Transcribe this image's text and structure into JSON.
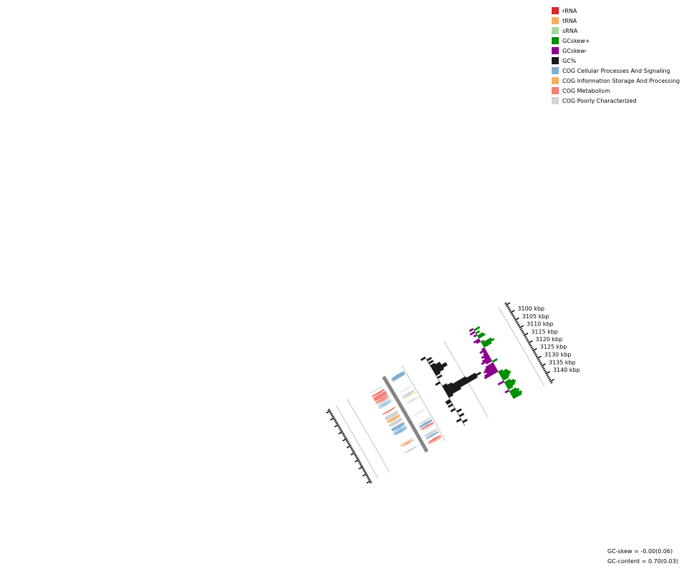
{
  "legend": [
    {
      "label": "rRNA",
      "color": "#d62728"
    },
    {
      "label": "tRNA",
      "color": "#f6ae62"
    },
    {
      "label": "sRNA",
      "color": "#a5d8a0"
    },
    {
      "label": "GCskew+",
      "color": "#008f00"
    },
    {
      "label": "GCskew-",
      "color": "#8b008b"
    },
    {
      "label": "GC%",
      "color": "#1a1a1a"
    },
    {
      "label": "COG Cellular Processes And Signaling",
      "color": "#7fb0d4"
    },
    {
      "label": "COG Information Storage And Processing",
      "color": "#f6ae62"
    },
    {
      "label": "COG Metabolism",
      "color": "#f47f72"
    },
    {
      "label": "COG Poorly Characterized",
      "color": "#d3d3d3"
    }
  ],
  "stats": {
    "gc_skew": "GC-skew = -0.00(0.06)",
    "gc_content": "GC-content = 0.70(0.03)"
  },
  "chart_data": {
    "type": "circular-genome-map-segment",
    "axis_unit": "kbp",
    "visible_range_kbp": [
      3097,
      3143
    ],
    "tick_labels": [
      {
        "kbp": 3100,
        "label": "3100 kbp"
      },
      {
        "kbp": 3105,
        "label": "3105 kbp"
      },
      {
        "kbp": 3110,
        "label": "3110 kbp"
      },
      {
        "kbp": 3115,
        "label": "3115 kbp"
      },
      {
        "kbp": 3120,
        "label": "3120 kbp"
      },
      {
        "kbp": 3125,
        "label": "3125 kbp"
      },
      {
        "kbp": 3130,
        "label": "3130 kbp"
      },
      {
        "kbp": 3135,
        "label": "3135 kbp"
      },
      {
        "kbp": 3140,
        "label": "3140 kbp"
      }
    ],
    "features": [
      {
        "start": 3097.2,
        "end": 3098.0,
        "strand": -1,
        "cog": "COG Poorly Characterized"
      },
      {
        "start": 3098.3,
        "end": 3098.9,
        "strand": 1,
        "cog": "COG Poorly Characterized"
      },
      {
        "start": 3097.0,
        "end": 3099.5,
        "strand": -1,
        "cog": "COG Cellular Processes And Signaling"
      },
      {
        "start": 3100.3,
        "end": 3101.6,
        "strand": 1,
        "cog": "COG Metabolism"
      },
      {
        "start": 3101.8,
        "end": 3104.5,
        "strand": 1,
        "cog": "COG Metabolism"
      },
      {
        "start": 3104.7,
        "end": 3105.9,
        "strand": 1,
        "cog": "COG Metabolism"
      },
      {
        "start": 3106.1,
        "end": 3106.8,
        "strand": 1,
        "cog": "COG Metabolism"
      },
      {
        "start": 3106.9,
        "end": 3107.4,
        "strand": -1,
        "cog": "COG Poorly Characterized"
      },
      {
        "start": 3107.5,
        "end": 3107.9,
        "strand": 1,
        "cog": "COG Cellular Processes And Signaling"
      },
      {
        "start": 3108.1,
        "end": 3108.8,
        "strand": 1,
        "cog": "COG Cellular Processes And Signaling"
      },
      {
        "start": 3109.1,
        "end": 3109.7,
        "strand": 1,
        "cog": "COG Cellular Processes And Signaling"
      },
      {
        "start": 3110.0,
        "end": 3110.6,
        "strand": -1,
        "cog": "COG Cellular Processes And Signaling"
      },
      {
        "start": 3111.2,
        "end": 3111.7,
        "strand": -1,
        "cog": "COG Information Storage And Processing"
      },
      {
        "start": 3113.0,
        "end": 3114.0,
        "strand": 1,
        "cog": "COG Metabolism"
      },
      {
        "start": 3114.3,
        "end": 3114.8,
        "strand": -1,
        "cog": "COG Poorly Characterized"
      },
      {
        "start": 3115.2,
        "end": 3115.5,
        "strand": -1,
        "cog": "COG Information Storage And Processing"
      },
      {
        "start": 3115.5,
        "end": 3118.0,
        "strand": 1,
        "cog": "COG Poorly Characterized"
      },
      {
        "start": 3118.2,
        "end": 3119.8,
        "strand": 1,
        "cog": "COG Information Storage And Processing"
      },
      {
        "start": 3120.3,
        "end": 3122.7,
        "strand": 1,
        "cog": "COG Poorly Characterized"
      },
      {
        "start": 3122.9,
        "end": 3123.4,
        "strand": -1,
        "cog": "COG Poorly Characterized"
      },
      {
        "start": 3123.5,
        "end": 3125.5,
        "strand": 1,
        "cog": "COG Cellular Processes And Signaling"
      },
      {
        "start": 3125.7,
        "end": 3126.3,
        "strand": 1,
        "cog": "COG Cellular Processes And Signaling"
      },
      {
        "start": 3126.6,
        "end": 3128.0,
        "strand": 1,
        "cog": "COG Cellular Processes And Signaling"
      },
      {
        "start": 3128.1,
        "end": 3128.4,
        "strand": 1,
        "cog": "COG Cellular Processes And Signaling"
      },
      {
        "start": 3128.9,
        "end": 3129.8,
        "strand": -1,
        "cog": "COG Poorly Characterized"
      },
      {
        "start": 3130.2,
        "end": 3131.7,
        "strand": -1,
        "cog": "COG Cellular Processes And Signaling"
      },
      {
        "start": 3132.0,
        "end": 3133.2,
        "strand": -1,
        "cog": "COG Metabolism"
      },
      {
        "start": 3133.4,
        "end": 3133.9,
        "strand": -1,
        "cog": "COG Poorly Characterized"
      },
      {
        "start": 3134.0,
        "end": 3134.3,
        "strand": -1,
        "cog": "COG Poorly Characterized"
      },
      {
        "start": 3134.7,
        "end": 3135.4,
        "strand": 1,
        "cog": "COG Information Storage And Processing"
      },
      {
        "start": 3135.7,
        "end": 3136.4,
        "strand": 1,
        "cog": "COG Metabolism"
      },
      {
        "start": 3136.5,
        "end": 3138.2,
        "strand": -1,
        "cog": "COG Poorly Characterized"
      },
      {
        "start": 3138.4,
        "end": 3139.5,
        "strand": -1,
        "cog": "COG Cellular Processes And Signaling"
      },
      {
        "start": 3140.0,
        "end": 3140.5,
        "strand": 1,
        "cog": "COG Cellular Processes And Signaling"
      },
      {
        "start": 3140.9,
        "end": 3142.3,
        "strand": -1,
        "cog": "COG Metabolism"
      },
      {
        "start": 3142.5,
        "end": 3143.0,
        "strand": -1,
        "cog": "COG Metabolism"
      }
    ],
    "gc_content": [
      {
        "kbp": 3097.0,
        "value": 0.69
      },
      {
        "kbp": 3098.0,
        "value": 0.7
      },
      {
        "kbp": 3099.0,
        "value": 0.71
      },
      {
        "kbp": 3100.0,
        "value": 0.7
      },
      {
        "kbp": 3101.0,
        "value": 0.71
      },
      {
        "kbp": 3102.0,
        "value": 0.7
      },
      {
        "kbp": 3103.0,
        "value": 0.71
      },
      {
        "kbp": 3104.0,
        "value": 0.72
      },
      {
        "kbp": 3105.0,
        "value": 0.72
      },
      {
        "kbp": 3106.0,
        "value": 0.73
      },
      {
        "kbp": 3107.0,
        "value": 0.73
      },
      {
        "kbp": 3108.0,
        "value": 0.72
      },
      {
        "kbp": 3109.0,
        "value": 0.71
      },
      {
        "kbp": 3110.0,
        "value": 0.7
      },
      {
        "kbp": 3111.0,
        "value": 0.71
      },
      {
        "kbp": 3112.0,
        "value": 0.7
      },
      {
        "kbp": 3113.0,
        "value": 0.7
      },
      {
        "kbp": 3114.0,
        "value": 0.69
      },
      {
        "kbp": 3115.0,
        "value": 0.7
      },
      {
        "kbp": 3116.0,
        "value": 0.7
      },
      {
        "kbp": 3117.0,
        "value": 0.71
      },
      {
        "kbp": 3118.0,
        "value": 0.72
      },
      {
        "kbp": 3119.0,
        "value": 0.75
      },
      {
        "kbp": 3120.0,
        "value": 0.77
      },
      {
        "kbp": 3121.0,
        "value": 0.78
      },
      {
        "kbp": 3122.0,
        "value": 0.77
      },
      {
        "kbp": 3123.0,
        "value": 0.73
      },
      {
        "kbp": 3124.0,
        "value": 0.71
      },
      {
        "kbp": 3125.0,
        "value": 0.7
      },
      {
        "kbp": 3126.0,
        "value": 0.69
      },
      {
        "kbp": 3127.0,
        "value": 0.69
      },
      {
        "kbp": 3128.0,
        "value": 0.7
      },
      {
        "kbp": 3129.0,
        "value": 0.69
      },
      {
        "kbp": 3130.0,
        "value": 0.7
      },
      {
        "kbp": 3131.0,
        "value": 0.7
      },
      {
        "kbp": 3132.0,
        "value": 0.69
      },
      {
        "kbp": 3133.0,
        "value": 0.7
      },
      {
        "kbp": 3134.0,
        "value": 0.71
      },
      {
        "kbp": 3135.0,
        "value": 0.7
      },
      {
        "kbp": 3136.0,
        "value": 0.7
      },
      {
        "kbp": 3137.0,
        "value": 0.71
      },
      {
        "kbp": 3138.0,
        "value": 0.7
      },
      {
        "kbp": 3139.0,
        "value": 0.69
      },
      {
        "kbp": 3140.0,
        "value": 0.7
      },
      {
        "kbp": 3141.0,
        "value": 0.71
      },
      {
        "kbp": 3142.0,
        "value": 0.7
      },
      {
        "kbp": 3143.0,
        "value": 0.7
      }
    ],
    "gc_skew": [
      {
        "kbp": 3097.0,
        "value": -0.04
      },
      {
        "kbp": 3098.0,
        "value": 0.06
      },
      {
        "kbp": 3099.0,
        "value": -0.05
      },
      {
        "kbp": 3100.0,
        "value": 0.04
      },
      {
        "kbp": 3101.0,
        "value": -0.03
      },
      {
        "kbp": 3102.0,
        "value": 0.06
      },
      {
        "kbp": 3103.0,
        "value": 0.07
      },
      {
        "kbp": 3104.0,
        "value": -0.06
      },
      {
        "kbp": 3105.0,
        "value": -0.04
      },
      {
        "kbp": 3106.0,
        "value": 0.03
      },
      {
        "kbp": 3107.0,
        "value": 0.1
      },
      {
        "kbp": 3108.0,
        "value": 0.12
      },
      {
        "kbp": 3109.0,
        "value": 0.08
      },
      {
        "kbp": 3110.0,
        "value": -0.03
      },
      {
        "kbp": 3111.0,
        "value": -0.06
      },
      {
        "kbp": 3112.0,
        "value": -0.03
      },
      {
        "kbp": 3113.0,
        "value": -0.04
      },
      {
        "kbp": 3114.0,
        "value": -0.07
      },
      {
        "kbp": 3115.0,
        "value": -0.05
      },
      {
        "kbp": 3116.0,
        "value": -0.08
      },
      {
        "kbp": 3117.0,
        "value": -0.1
      },
      {
        "kbp": 3118.0,
        "value": -0.06
      },
      {
        "kbp": 3119.0,
        "value": 0.05
      },
      {
        "kbp": 3120.0,
        "value": -0.08
      },
      {
        "kbp": 3121.0,
        "value": -0.1
      },
      {
        "kbp": 3122.0,
        "value": -0.12
      },
      {
        "kbp": 3123.0,
        "value": -0.1
      },
      {
        "kbp": 3124.0,
        "value": -0.13
      },
      {
        "kbp": 3125.0,
        "value": -0.14
      },
      {
        "kbp": 3126.0,
        "value": 0.04
      },
      {
        "kbp": 3127.0,
        "value": 0.08
      },
      {
        "kbp": 3128.0,
        "value": 0.09
      },
      {
        "kbp": 3129.0,
        "value": 0.1
      },
      {
        "kbp": 3130.0,
        "value": 0.08
      },
      {
        "kbp": 3131.0,
        "value": 0.06
      },
      {
        "kbp": 3132.0,
        "value": -0.06
      },
      {
        "kbp": 3133.0,
        "value": 0.06
      },
      {
        "kbp": 3134.0,
        "value": 0.09
      },
      {
        "kbp": 3135.0,
        "value": 0.1
      },
      {
        "kbp": 3136.0,
        "value": 0.08
      },
      {
        "kbp": 3137.0,
        "value": 0.05
      },
      {
        "kbp": 3138.0,
        "value": -0.04
      },
      {
        "kbp": 3139.0,
        "value": 0.07
      },
      {
        "kbp": 3140.0,
        "value": 0.09
      },
      {
        "kbp": 3141.0,
        "value": 0.08
      },
      {
        "kbp": 3142.0,
        "value": 0.1
      },
      {
        "kbp": 3143.0,
        "value": 0.09
      }
    ]
  }
}
